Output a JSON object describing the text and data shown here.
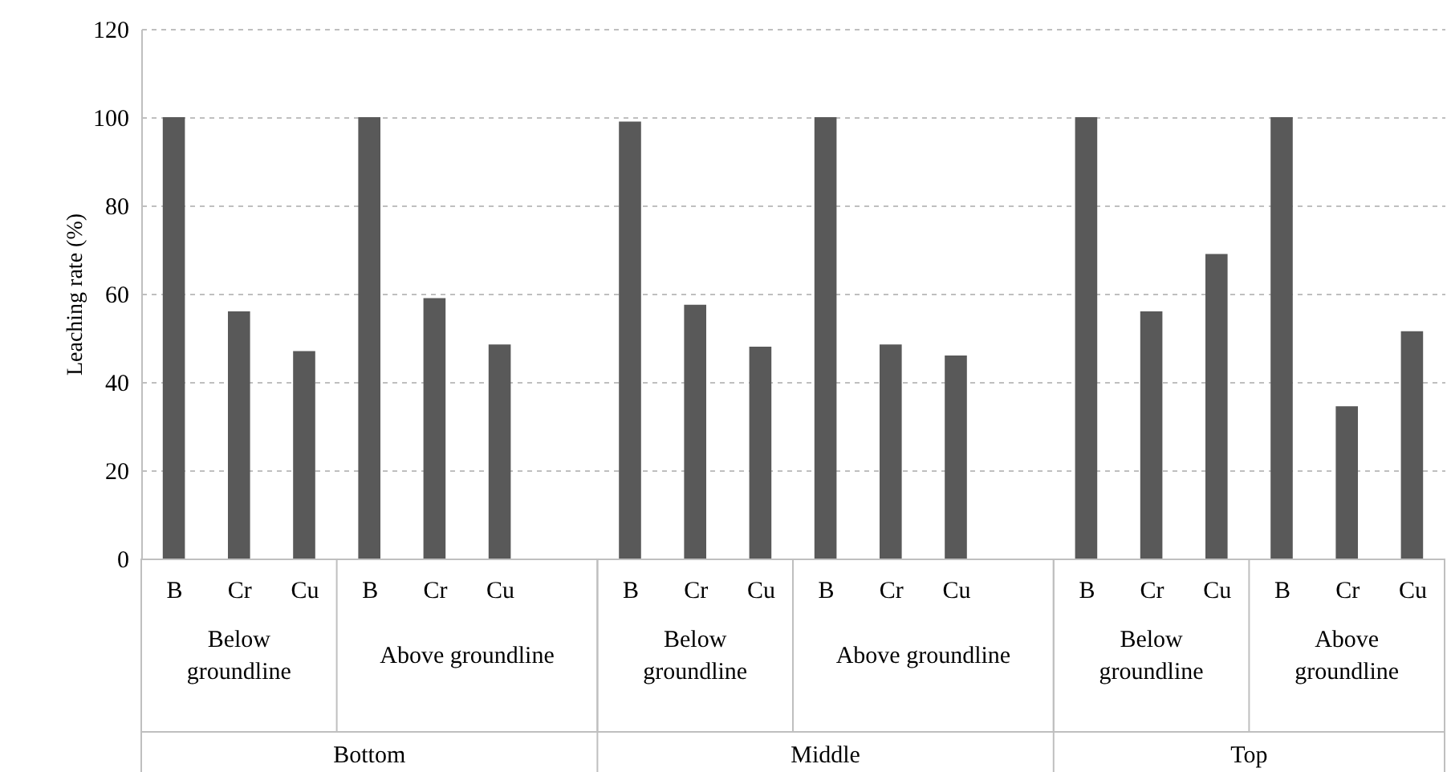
{
  "chart_data": {
    "type": "bar",
    "ylabel": "Leaching rate (%)",
    "categories": [
      "B",
      "Cr",
      "Cu",
      "B",
      "Cr",
      "Cu",
      null,
      "B",
      "Cr",
      "Cu",
      "B",
      "Cr",
      "Cu",
      null,
      "B",
      "Cr",
      "Cu",
      "B",
      "Cr",
      "Cu"
    ],
    "values": [
      100,
      56,
      47,
      100,
      59,
      48.5,
      null,
      99,
      57.5,
      48,
      100,
      48.5,
      46,
      null,
      100,
      56,
      69,
      100,
      34.5,
      51.5
    ],
    "color": "#595959",
    "ylim": [
      0,
      120
    ],
    "yticks": [
      0,
      20,
      40,
      60,
      80,
      100,
      120
    ],
    "grid": "y",
    "annotations": [
      "Below groundline",
      "Above groundline",
      "Below groundline",
      "Above groundline",
      "Below groundline",
      "Above groundline",
      "Bottom",
      "Middle",
      "Top"
    ]
  }
}
